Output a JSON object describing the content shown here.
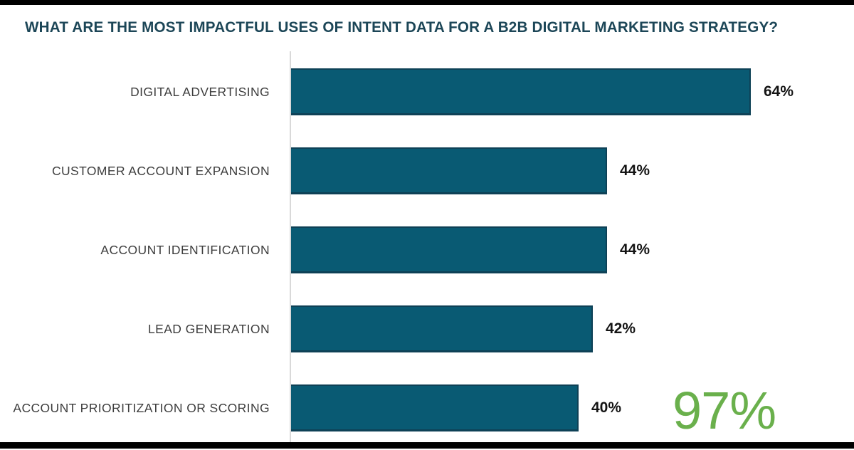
{
  "title": "WHAT ARE THE MOST IMPACTFUL USES OF INTENT DATA FOR A B2B DIGITAL MARKETING STRATEGY?",
  "chart_data": {
    "type": "bar",
    "orientation": "horizontal",
    "title": "WHAT ARE THE MOST IMPACTFUL USES OF INTENT DATA FOR A B2B DIGITAL MARKETING STRATEGY?",
    "categories": [
      "DIGITAL ADVERTISING",
      "CUSTOMER ACCOUNT EXPANSION",
      "ACCOUNT IDENTIFICATION",
      "LEAD GENERATION",
      "ACCOUNT PRIORITIZATION OR SCORING"
    ],
    "values": [
      64,
      44,
      44,
      42,
      40
    ],
    "value_labels": [
      "64%",
      "44%",
      "44%",
      "42%",
      "40%"
    ],
    "xlabel": "",
    "ylabel": "",
    "xlim": [
      0,
      68
    ],
    "grid": false,
    "legend": "none",
    "bar_color": "#095a73",
    "annotation": {
      "text": "97%",
      "color": "#6ab04c",
      "position": "bottom-right"
    }
  },
  "colors": {
    "title": "#1c4657",
    "category_label": "#3d3d3d",
    "value_label": "#141414",
    "axis_line": "#d9d9d9",
    "bar": "#095a73",
    "highlight_green": "#6ab04c",
    "letterbox": "#000000"
  }
}
